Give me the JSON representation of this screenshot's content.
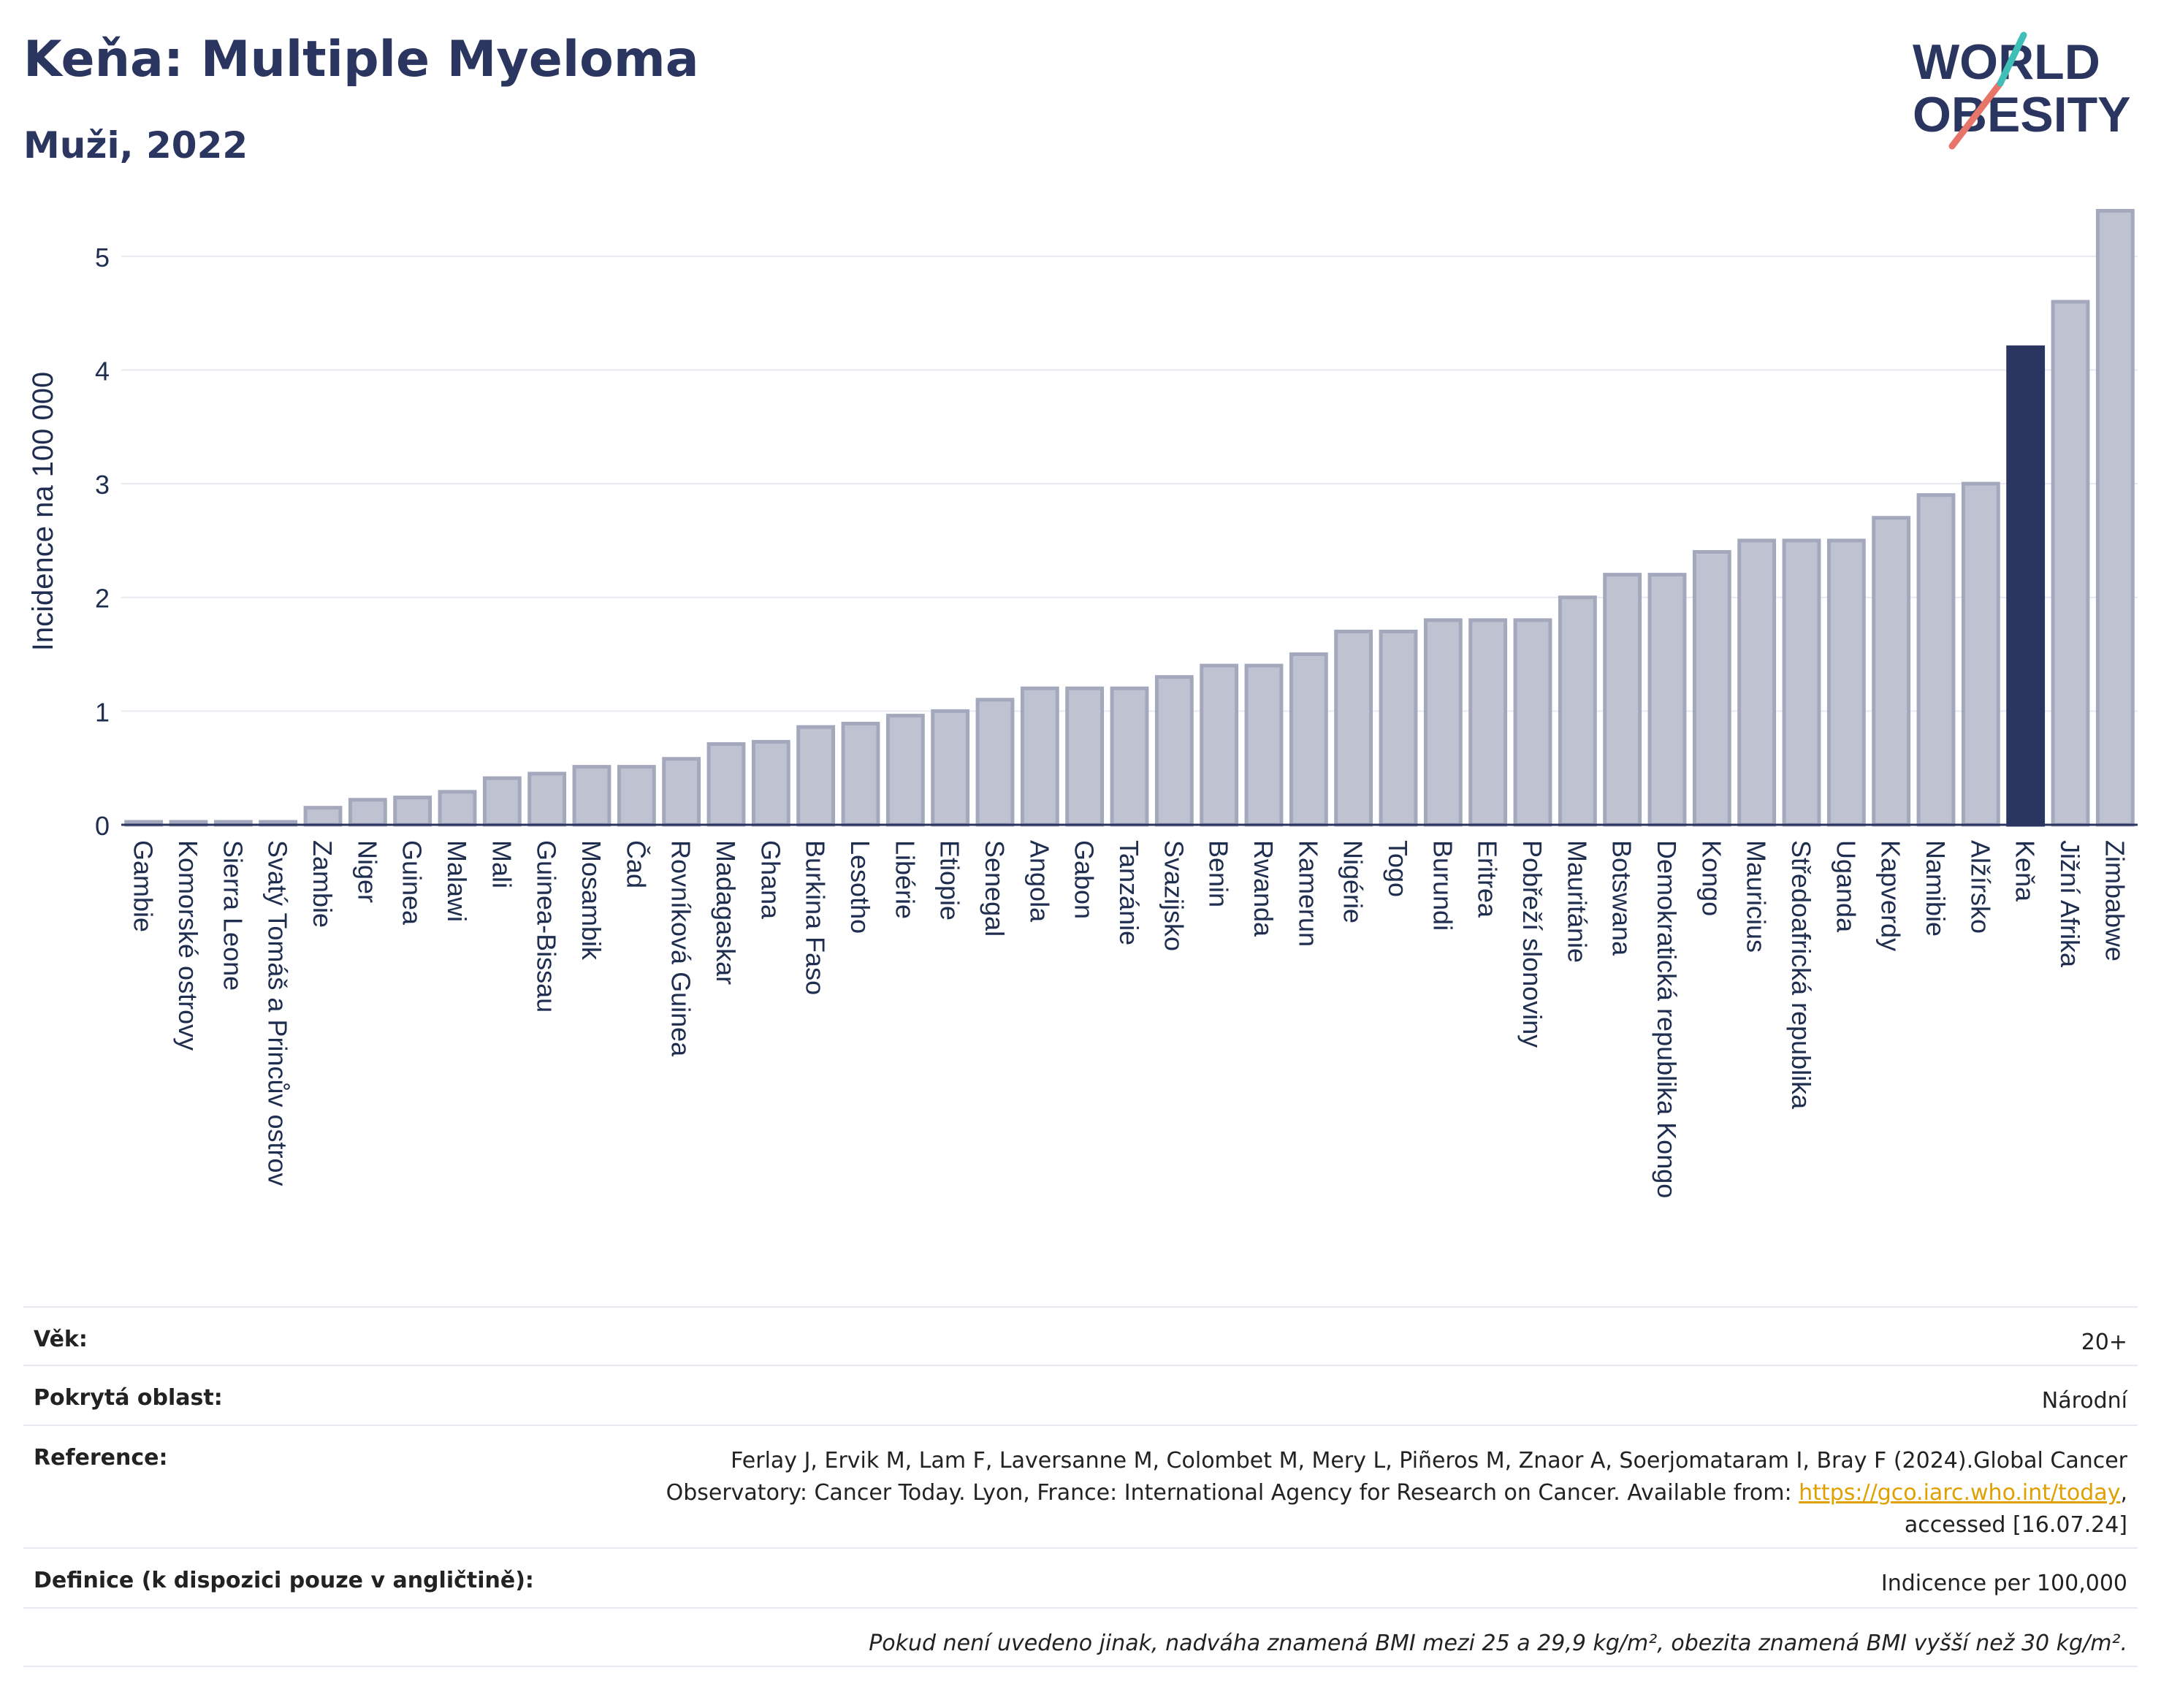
{
  "header": {
    "title": "Keňa: Multiple Myeloma",
    "subtitle": "Muži, 2022"
  },
  "logo": {
    "line1": "WORLD",
    "line2": "OBESITY"
  },
  "colors": {
    "bar": "#bfc3d1",
    "bar_stroke": "#a3a8bd",
    "highlight": "#2a3560",
    "grid": "#e7eaf0",
    "axis": "#2a3560",
    "text": "#1f2d4f"
  },
  "chart_data": {
    "type": "bar",
    "ylabel": "Incidence na 100 000",
    "ylim": [
      0,
      5.5
    ],
    "yticks": [
      0,
      1,
      2,
      3,
      4,
      5
    ],
    "grid": true,
    "highlight": "Keňa",
    "categories": [
      "Gambie",
      "Komorské ostrovy",
      "Sierra Leone",
      "Svatý Tomáš a Princův ostrov",
      "Zambie",
      "Niger",
      "Guinea",
      "Malawi",
      "Mali",
      "Guinea-Bissau",
      "Mosambik",
      "Čad",
      "Rovníková Guinea",
      "Madagaskar",
      "Ghana",
      "Burkina Faso",
      "Lesotho",
      "Libérie",
      "Etiopie",
      "Senegal",
      "Angola",
      "Gabon",
      "Tanzánie",
      "Svazijsko",
      "Benin",
      "Rwanda",
      "Kamerun",
      "Nigérie",
      "Togo",
      "Burundi",
      "Eritrea",
      "Pobřeží slonoviny",
      "Mauritánie",
      "Botswana",
      "Demokratická republika Kongo",
      "Kongo",
      "Mauricius",
      "Středoafrická republika",
      "Uganda",
      "Kapverdy",
      "Namibie",
      "Alžírsko",
      "Keňa",
      "Jižní Afrika",
      "Zimbabwe"
    ],
    "values": [
      0.02,
      0.02,
      0.02,
      0.02,
      0.15,
      0.22,
      0.24,
      0.29,
      0.41,
      0.45,
      0.51,
      0.51,
      0.58,
      0.71,
      0.73,
      0.86,
      0.89,
      0.96,
      1.0,
      1.1,
      1.2,
      1.2,
      1.2,
      1.3,
      1.4,
      1.4,
      1.5,
      1.7,
      1.7,
      1.8,
      1.8,
      1.8,
      2.0,
      2.2,
      2.2,
      2.4,
      2.5,
      2.5,
      2.5,
      2.7,
      2.9,
      3.0,
      4.2,
      4.6,
      5.4
    ]
  },
  "info": {
    "age_label": "Věk:",
    "age_value": "20+",
    "area_label": "Pokrytá oblast:",
    "area_value": "Národní",
    "reference_label": "Reference:",
    "reference_text": "Ferlay J, Ervik M, Lam F, Laversanne M, Colombet M, Mery L, Piñeros M, Znaor A, Soerjomataram I, Bray F (2024).Global Cancer Observatory: Cancer Today. Lyon, France: International Agency for Research on Cancer. Available from: ",
    "reference_link": "https://gco.iarc.who.int/today",
    "reference_tail": ", accessed [16.07.24]",
    "definition_label": "Definice (k dispozici pouze v angličtině):",
    "definition_value": "Indicence per 100,000",
    "footnote": "Pokud není uvedeno jinak, nadváha znamená BMI mezi 25 a 29,9 kg/m², obezita znamená BMI vyšší než 30 kg/m²."
  }
}
